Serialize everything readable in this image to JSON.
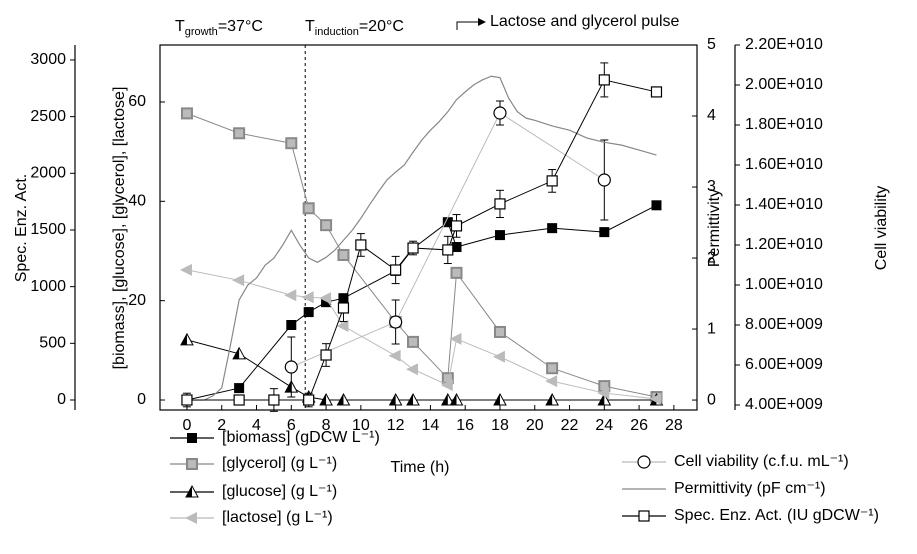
{
  "chart_data": {
    "type": "line",
    "xlabel": "Time (h)",
    "xlim": [
      -1.55,
      29.33
    ],
    "xticks": [
      0,
      2,
      4,
      6,
      8,
      10,
      12,
      14,
      16,
      18,
      20,
      22,
      24,
      26,
      28
    ],
    "ylabel": "[biomass], [glucose], [glycerol], [lactose]",
    "ylim": [
      -2.01,
      71.47
    ],
    "yticks": [
      0,
      20,
      40,
      60
    ],
    "y3label": "Spec. Enz. Act.",
    "y3lim": [
      -88.2,
      3132
    ],
    "y3ticks": [
      0,
      500,
      1000,
      1500,
      2000,
      2500,
      3000
    ],
    "y2label": "Permittivity",
    "y2lim": [
      -0.14,
      5
    ],
    "y2ticks": [
      0,
      1,
      2,
      3,
      4,
      5
    ],
    "y4label": "Cell viability",
    "y4lim": [
      3750000000,
      22000000000
    ],
    "y4ticks": [
      {
        "value": 4000000000,
        "label": "4.00E+009"
      },
      {
        "value": 6000000000,
        "label": "6.00E+009"
      },
      {
        "value": 8000000000,
        "label": "8.00E+009"
      },
      {
        "value": 10000000000,
        "label": "1.00E+010"
      },
      {
        "value": 12000000000,
        "label": "1.20E+010"
      },
      {
        "value": 14000000000,
        "label": "1.40E+010"
      },
      {
        "value": 16000000000,
        "label": "1.60E+010"
      },
      {
        "value": 18000000000,
        "label": "1.80E+010"
      },
      {
        "value": 20000000000,
        "label": "2.00E+010"
      },
      {
        "value": 22000000000,
        "label": "2.20E+010"
      }
    ],
    "induction_time": 6.8,
    "pulse_time": 15.5,
    "annotations": [
      {
        "text": "T",
        "sub": "growth",
        "rest": "=37°C"
      },
      {
        "text": "T",
        "sub": "induction",
        "rest": "=20°C"
      },
      {
        "text": "Lactose and glycerol pulse"
      }
    ],
    "series": [
      {
        "name": "[biomass] (gDCW L⁻¹)",
        "color": "#000000",
        "marker": "square-filled",
        "axis": "y",
        "x": [
          0,
          3,
          6,
          7,
          8,
          9,
          12,
          13,
          15,
          15.5,
          18,
          21,
          24,
          27
        ],
        "values": [
          0,
          2.4,
          15.1,
          17.7,
          19.7,
          20.5,
          26,
          30.5,
          35.8,
          30.8,
          33.2,
          34.6,
          33.8,
          39.2
        ]
      },
      {
        "name": "[glycerol] (g L⁻¹)",
        "color": "#888888",
        "marker": "square-gray",
        "axis": "y",
        "x": [
          0,
          3,
          6,
          7,
          8,
          9,
          12,
          13,
          15,
          15.5,
          18,
          21,
          24,
          27
        ],
        "values": [
          57.7,
          53.7,
          51.7,
          38.6,
          35.2,
          29.2,
          15.7,
          11.7,
          4.4,
          25.6,
          13.7,
          6.4,
          2.8,
          0.6
        ]
      },
      {
        "name": "[glucose] (g L⁻¹)",
        "color": "#000000",
        "marker": "triangle-half",
        "axis": "y",
        "x": [
          0,
          3,
          6,
          7,
          8,
          9,
          12,
          13,
          15,
          15.5,
          18,
          21,
          24,
          27
        ],
        "values": [
          12.1,
          9.3,
          2.6,
          0.6,
          0,
          0,
          0,
          0,
          0,
          0,
          0,
          0,
          0,
          0
        ]
      },
      {
        "name": "[lactose] (g L⁻¹)",
        "color": "#bbbbbb",
        "marker": "triangle-left",
        "axis": "y",
        "x": [
          0,
          3,
          6,
          7,
          8,
          9,
          12,
          13,
          15,
          15.5,
          18,
          21,
          24,
          27
        ],
        "values": [
          26.2,
          24.1,
          21.1,
          20.7,
          20.5,
          14.9,
          8.9,
          6.2,
          3.0,
          12.3,
          8.7,
          3.8,
          1.4,
          0.2
        ]
      },
      {
        "name": "Cell viability (c.f.u. mL⁻¹)",
        "color": "#bbbbbb",
        "marker": "circle-open",
        "axis": "y4",
        "x": [
          6,
          12,
          18,
          24
        ],
        "values": [
          5900000000,
          8150000000,
          18600000000,
          15250000000
        ],
        "errors": [
          1500000000,
          1100000000,
          600000000,
          2000000000
        ]
      },
      {
        "name": "Permittivity (pF cm⁻¹)",
        "color": "#888888",
        "marker": "none",
        "axis": "y2",
        "x": [
          0,
          1,
          1.5,
          2,
          2.5,
          3,
          3.5,
          4,
          4.5,
          5,
          5.5,
          6,
          6.5,
          7,
          7.5,
          8,
          8.5,
          9,
          9.5,
          10,
          10.5,
          11,
          11.5,
          12,
          12.5,
          13,
          13.5,
          14,
          14.5,
          15,
          15.5,
          16,
          16.5,
          17,
          17.5,
          18,
          18.5,
          19,
          19.5,
          20,
          21,
          22,
          23,
          24,
          25,
          26,
          27
        ],
        "values": [
          0,
          0,
          0.06,
          0.17,
          0.77,
          1.41,
          1.62,
          1.72,
          1.9,
          2.0,
          2.18,
          2.39,
          2.18,
          2.0,
          1.94,
          2.01,
          2.11,
          2.25,
          2.39,
          2.56,
          2.75,
          2.93,
          3.1,
          3.21,
          3.31,
          3.49,
          3.66,
          3.8,
          3.92,
          4.06,
          4.23,
          4.34,
          4.44,
          4.51,
          4.56,
          4.54,
          4.25,
          4.06,
          3.97,
          3.94,
          3.86,
          3.8,
          3.69,
          3.63,
          3.59,
          3.52,
          3.45
        ]
      },
      {
        "name": "Spec. Enz. Act. (IU gDCW⁻¹)",
        "color": "#000000",
        "marker": "square-open",
        "axis": "y3",
        "x": [
          0,
          3,
          5,
          7,
          8,
          9,
          10,
          12,
          13,
          15,
          15.5,
          18,
          21,
          24,
          27
        ],
        "values": [
          0,
          0,
          0,
          0,
          397,
          812,
          1368,
          1147,
          1341,
          1324,
          1536,
          1730,
          1933,
          2824,
          2718
        ],
        "errors": [
          60,
          0,
          100,
          60,
          100,
          120,
          100,
          120,
          60,
          120,
          100,
          120,
          100,
          150,
          0
        ]
      }
    ]
  }
}
